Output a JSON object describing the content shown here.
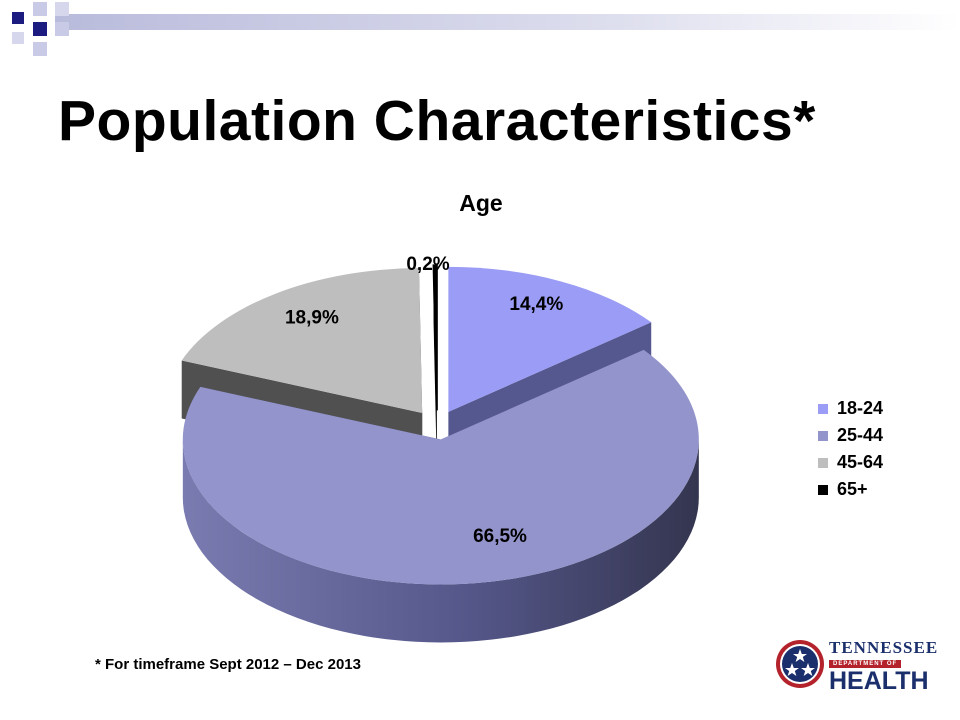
{
  "slide": {
    "title": "Population Characteristics*",
    "footnote": "* For timeframe Sept 2012 – Dec 2013",
    "logo": {
      "line1": "TENNESSEE",
      "line2": "DEPARTMENT OF",
      "line3": "HEALTH",
      "icon": "three-stars-emblem-icon"
    }
  },
  "chart_data": {
    "type": "pie",
    "title": "Age",
    "categories": [
      "18-24",
      "25-44",
      "45-64",
      "65+"
    ],
    "values": [
      14.4,
      66.5,
      18.9,
      0.2
    ],
    "labels": [
      "14,4%",
      "66,5%",
      "18,9%",
      "0,2%"
    ],
    "colors": [
      "#9a9cf5",
      "#9394cb",
      "#bebebe",
      "#000000"
    ],
    "legend_position": "right",
    "exploded": true,
    "three_d": true
  }
}
